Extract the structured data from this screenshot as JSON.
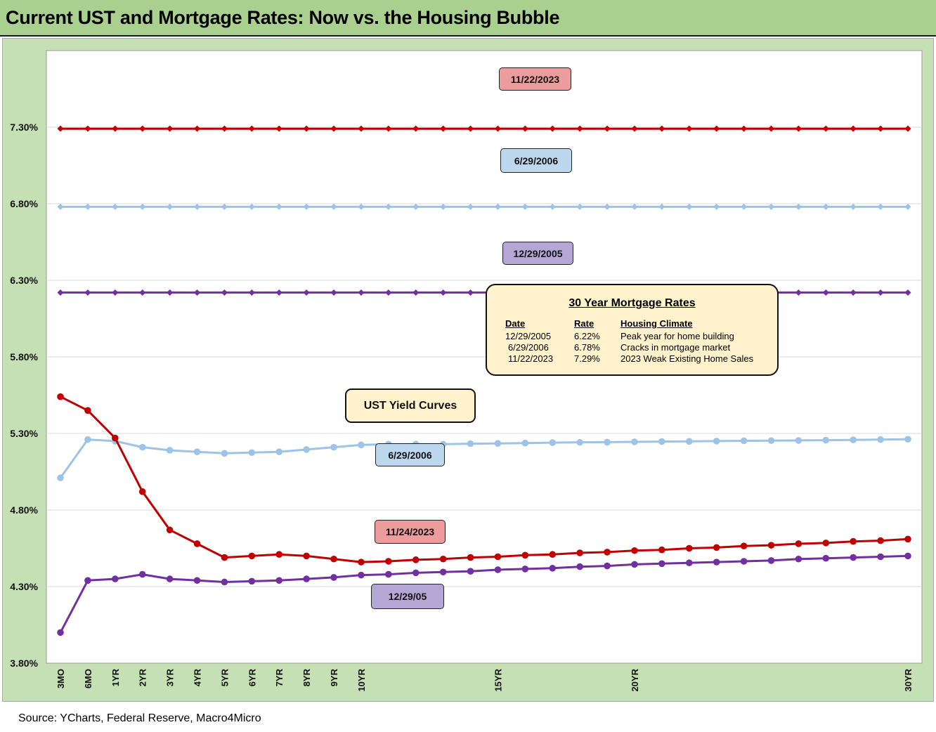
{
  "title": "Current UST and Mortgage Rates: Now vs. the Housing Bubble",
  "source": "Source: YCharts, Federal Reserve, Macro4Micro",
  "colors": {
    "red": "#c00000",
    "blue": "#9dc3e6",
    "purple": "#7030a0",
    "frame": "#c5e0b4",
    "title_bg": "#a9d08e"
  },
  "labels": {
    "mortgage_2023": "11/22/2023",
    "mortgage_2006": "6/29/2006",
    "mortgage_2005": "12/29/2005",
    "ust_header": "UST Yield Curves",
    "ust_2006": "6/29/2006",
    "ust_2023": "11/24/2023",
    "ust_2005": "12/29/05"
  },
  "mortgage_table": {
    "title": "30 Year Mortgage Rates",
    "headers": {
      "date": "Date",
      "rate": "Rate",
      "climate": "Housing Climate"
    },
    "rows": [
      {
        "date": "12/29/2005",
        "rate": "6.22%",
        "climate": "Peak year for home building"
      },
      {
        "date": "6/29/2006",
        "rate": "6.78%",
        "climate": "Cracks in mortgage market"
      },
      {
        "date": "11/22/2023",
        "rate": "7.29%",
        "climate": "2023 Weak Existing Home Sales"
      }
    ]
  },
  "chart_data": {
    "type": "line",
    "title": "Current UST and Mortgage Rates: Now vs. the Housing Bubble",
    "xlabel": "",
    "ylabel": "",
    "ylim": [
      3.8,
      7.8
    ],
    "y_ticks": [
      "3.80%",
      "4.30%",
      "4.80%",
      "5.30%",
      "5.80%",
      "6.30%",
      "6.80%",
      "7.30%"
    ],
    "categories": [
      "3MO",
      "6MO",
      "1YR",
      "2YR",
      "3YR",
      "4YR",
      "5YR",
      "6YR",
      "7YR",
      "8YR",
      "9YR",
      "10YR",
      "11YR",
      "12YR",
      "13YR",
      "14YR",
      "15YR",
      "16YR",
      "17YR",
      "18YR",
      "19YR",
      "20YR",
      "21YR",
      "22YR",
      "23YR",
      "24YR",
      "25YR",
      "26YR",
      "27YR",
      "28YR",
      "29YR",
      "30YR"
    ],
    "x_tick_labels": [
      "3MO",
      "6MO",
      "1YR",
      "2YR",
      "3YR",
      "4YR",
      "5YR",
      "6YR",
      "7YR",
      "8YR",
      "9YR",
      "10YR",
      "",
      "",
      "",
      "",
      "15YR",
      "",
      "",
      "",
      "",
      "20YR",
      "",
      "",
      "",
      "",
      "",
      "",
      "",
      "",
      "",
      "30YR"
    ],
    "grid": true,
    "legend": "none",
    "series": [
      {
        "name": "11/22/2023",
        "style": "diamond",
        "color": "#c00000",
        "values": [
          7.29,
          7.29,
          7.29,
          7.29,
          7.29,
          7.29,
          7.29,
          7.29,
          7.29,
          7.29,
          7.29,
          7.29,
          7.29,
          7.29,
          7.29,
          7.29,
          7.29,
          7.29,
          7.29,
          7.29,
          7.29,
          7.29,
          7.29,
          7.29,
          7.29,
          7.29,
          7.29,
          7.29,
          7.29,
          7.29,
          7.29,
          7.29
        ]
      },
      {
        "name": "6/29/2006",
        "style": "diamond",
        "color": "#9dc3e6",
        "values": [
          6.78,
          6.78,
          6.78,
          6.78,
          6.78,
          6.78,
          6.78,
          6.78,
          6.78,
          6.78,
          6.78,
          6.78,
          6.78,
          6.78,
          6.78,
          6.78,
          6.78,
          6.78,
          6.78,
          6.78,
          6.78,
          6.78,
          6.78,
          6.78,
          6.78,
          6.78,
          6.78,
          6.78,
          6.78,
          6.78,
          6.78,
          6.78
        ]
      },
      {
        "name": "12/29/2005",
        "style": "diamond",
        "color": "#7030a0",
        "values": [
          6.22,
          6.22,
          6.22,
          6.22,
          6.22,
          6.22,
          6.22,
          6.22,
          6.22,
          6.22,
          6.22,
          6.22,
          6.22,
          6.22,
          6.22,
          6.22,
          6.22,
          6.22,
          6.22,
          6.22,
          6.22,
          6.22,
          6.22,
          6.22,
          6.22,
          6.22,
          6.22,
          6.22,
          6.22,
          6.22,
          6.22,
          6.22
        ]
      },
      {
        "name": "6/29/2006",
        "style": "circle",
        "color": "#9dc3e6",
        "values": [
          5.01,
          5.26,
          5.25,
          5.21,
          5.19,
          5.18,
          5.17,
          5.175,
          5.18,
          5.195,
          5.21,
          5.225,
          5.23,
          5.23,
          5.23,
          5.233,
          5.235,
          5.237,
          5.24,
          5.242,
          5.243,
          5.245,
          5.247,
          5.248,
          5.25,
          5.252,
          5.253,
          5.254,
          5.256,
          5.258,
          5.26,
          5.262
        ]
      },
      {
        "name": "11/24/2023",
        "style": "circle",
        "color": "#c00000",
        "values": [
          5.54,
          5.45,
          5.27,
          4.92,
          4.67,
          4.58,
          4.49,
          4.5,
          4.51,
          4.5,
          4.48,
          4.46,
          4.465,
          4.475,
          4.48,
          4.49,
          4.495,
          4.505,
          4.51,
          4.52,
          4.525,
          4.535,
          4.54,
          4.55,
          4.555,
          4.565,
          4.57,
          4.58,
          4.585,
          4.595,
          4.6,
          4.61
        ]
      },
      {
        "name": "12/29/05",
        "style": "circle",
        "color": "#7030a0",
        "values": [
          4.0,
          4.34,
          4.35,
          4.38,
          4.35,
          4.34,
          4.33,
          4.335,
          4.34,
          4.35,
          4.36,
          4.375,
          4.38,
          4.39,
          4.395,
          4.4,
          4.41,
          4.415,
          4.42,
          4.43,
          4.435,
          4.445,
          4.45,
          4.455,
          4.46,
          4.465,
          4.47,
          4.48,
          4.485,
          4.49,
          4.495,
          4.5
        ]
      }
    ]
  }
}
